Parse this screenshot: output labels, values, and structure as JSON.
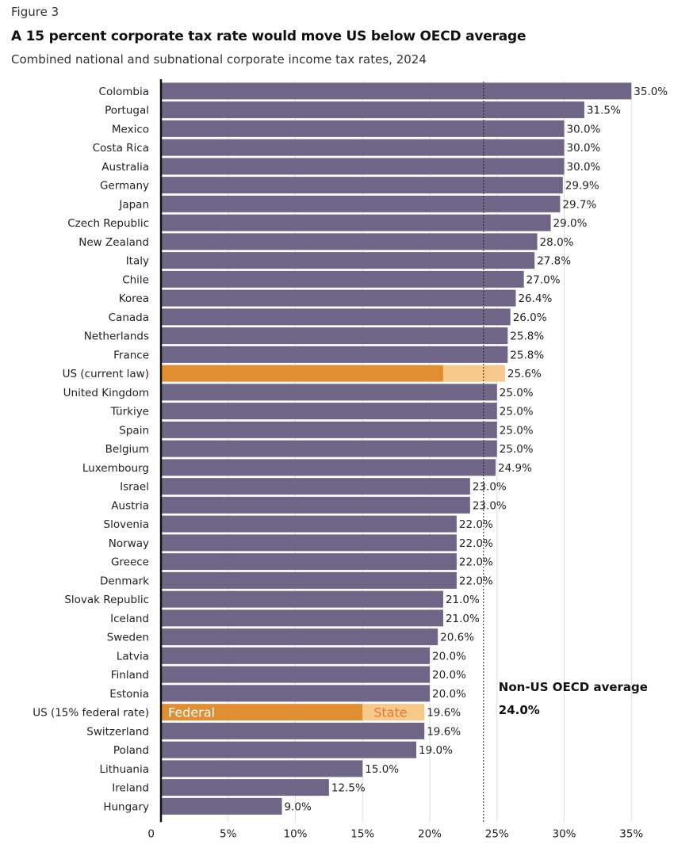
{
  "figure_label": "Figure 3",
  "title": "A 15 percent corporate tax rate would move US below OECD average",
  "subtitle": "Combined national and subnational corporate income tax rates, 2024",
  "colors": {
    "bar": "#6e6587",
    "us_federal": "#e08e32",
    "us_state": "#f6c98a",
    "grid": "#dddddd",
    "axis": "#111111",
    "state_text": "#e07a3a"
  },
  "chart_data": {
    "type": "bar",
    "orientation": "horizontal",
    "xlim": [
      0,
      36
    ],
    "grid": true,
    "x_ticks": [
      {
        "value": 0,
        "label": "0"
      },
      {
        "value": 5,
        "label": "5%"
      },
      {
        "value": 10,
        "label": "10%"
      },
      {
        "value": 15,
        "label": "15%"
      },
      {
        "value": 20,
        "label": "20%"
      },
      {
        "value": 25,
        "label": "25%"
      },
      {
        "value": 30,
        "label": "30%"
      },
      {
        "value": 35,
        "label": "35%"
      }
    ],
    "reference_line": {
      "value": 24.0,
      "label": "Non-US OECD average",
      "value_label": "24.0%"
    },
    "bars": [
      {
        "category": "Colombia",
        "value": 35.0,
        "label": "35.0%"
      },
      {
        "category": "Portugal",
        "value": 31.5,
        "label": "31.5%"
      },
      {
        "category": "Mexico",
        "value": 30.0,
        "label": "30.0%"
      },
      {
        "category": "Costa Rica",
        "value": 30.0,
        "label": "30.0%"
      },
      {
        "category": "Australia",
        "value": 30.0,
        "label": "30.0%"
      },
      {
        "category": "Germany",
        "value": 29.9,
        "label": "29.9%"
      },
      {
        "category": "Japan",
        "value": 29.7,
        "label": "29.7%"
      },
      {
        "category": "Czech Republic",
        "value": 29.0,
        "label": "29.0%"
      },
      {
        "category": "New Zealand",
        "value": 28.0,
        "label": "28.0%"
      },
      {
        "category": "Italy",
        "value": 27.8,
        "label": "27.8%"
      },
      {
        "category": "Chile",
        "value": 27.0,
        "label": "27.0%"
      },
      {
        "category": "Korea",
        "value": 26.4,
        "label": "26.4%"
      },
      {
        "category": "Canada",
        "value": 26.0,
        "label": "26.0%"
      },
      {
        "category": "Netherlands",
        "value": 25.8,
        "label": "25.8%"
      },
      {
        "category": "France",
        "value": 25.8,
        "label": "25.8%"
      },
      {
        "category": "US (current law)",
        "value": 25.6,
        "label": "25.6%",
        "federal": 21.0,
        "state": 4.6
      },
      {
        "category": "United Kingdom",
        "value": 25.0,
        "label": "25.0%"
      },
      {
        "category": "Türkiye",
        "value": 25.0,
        "label": "25.0%"
      },
      {
        "category": "Spain",
        "value": 25.0,
        "label": "25.0%"
      },
      {
        "category": "Belgium",
        "value": 25.0,
        "label": "25.0%"
      },
      {
        "category": "Luxembourg",
        "value": 24.9,
        "label": "24.9%"
      },
      {
        "category": "Israel",
        "value": 23.0,
        "label": "23.0%"
      },
      {
        "category": "Austria",
        "value": 23.0,
        "label": "23.0%"
      },
      {
        "category": "Slovenia",
        "value": 22.0,
        "label": "22.0%"
      },
      {
        "category": "Norway",
        "value": 22.0,
        "label": "22.0%"
      },
      {
        "category": "Greece",
        "value": 22.0,
        "label": "22.0%"
      },
      {
        "category": "Denmark",
        "value": 22.0,
        "label": "22.0%"
      },
      {
        "category": "Slovak Republic",
        "value": 21.0,
        "label": "21.0%"
      },
      {
        "category": "Iceland",
        "value": 21.0,
        "label": "21.0%"
      },
      {
        "category": "Sweden",
        "value": 20.6,
        "label": "20.6%"
      },
      {
        "category": "Latvia",
        "value": 20.0,
        "label": "20.0%"
      },
      {
        "category": "Finland",
        "value": 20.0,
        "label": "20.0%"
      },
      {
        "category": "Estonia",
        "value": 20.0,
        "label": "20.0%"
      },
      {
        "category": "US (15% federal rate)",
        "value": 19.6,
        "label": "19.6%",
        "federal": 15.0,
        "state": 4.6,
        "federal_label": "Federal",
        "state_label": "State"
      },
      {
        "category": "Switzerland",
        "value": 19.6,
        "label": "19.6%"
      },
      {
        "category": "Poland",
        "value": 19.0,
        "label": "19.0%"
      },
      {
        "category": "Lithuania",
        "value": 15.0,
        "label": "15.0%"
      },
      {
        "category": "Ireland",
        "value": 12.5,
        "label": "12.5%"
      },
      {
        "category": "Hungary",
        "value": 9.0,
        "label": "9.0%"
      }
    ]
  }
}
